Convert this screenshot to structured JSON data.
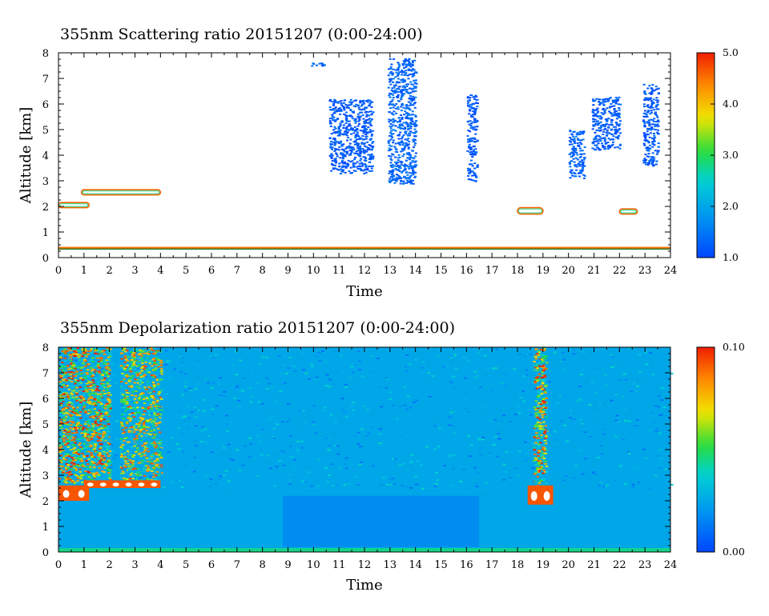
{
  "chart_data": [
    {
      "type": "heatmap",
      "title": "355nm Scattering ratio  20151207 (0:00-24:00)",
      "xlabel": "Time",
      "ylabel": "Altitude [km]",
      "xlim": [
        0,
        24
      ],
      "ylim": [
        0,
        8
      ],
      "x_ticks": [
        "0",
        "1",
        "2",
        "3",
        "4",
        "5",
        "6",
        "7",
        "8",
        "9",
        "10",
        "11",
        "12",
        "13",
        "14",
        "15",
        "16",
        "17",
        "18",
        "19",
        "20",
        "21",
        "22",
        "23",
        "24"
      ],
      "y_ticks": [
        "0",
        "1",
        "2",
        "3",
        "4",
        "5",
        "6",
        "7",
        "8"
      ],
      "colorbar": {
        "min": 1.0,
        "max": 5.0,
        "tick_labels": [
          "1.0",
          "2.0",
          "3.0",
          "4.0",
          "5.0"
        ]
      },
      "background_color": "#ffffff",
      "features": [
        {
          "kind": "cloud-outline",
          "x": [
            0.0,
            1.2
          ],
          "y": [
            1.95,
            2.15
          ],
          "value": 2.5
        },
        {
          "kind": "cloud-outline",
          "x": [
            0.9,
            4.0
          ],
          "y": [
            2.45,
            2.65
          ],
          "value": 2.5
        },
        {
          "kind": "surface-layer",
          "x": [
            0,
            24
          ],
          "y": [
            0.35,
            0.42
          ],
          "value": 4.5
        },
        {
          "kind": "cloud",
          "x": [
            9.8,
            10.4
          ],
          "y": [
            7.5,
            7.65
          ],
          "value": 1.3
        },
        {
          "kind": "cloud",
          "x": [
            10.6,
            12.3
          ],
          "y": [
            3.3,
            6.2
          ],
          "value": 1.2
        },
        {
          "kind": "cloud",
          "x": [
            12.9,
            14.0
          ],
          "y": [
            2.9,
            7.8
          ],
          "value": 1.3
        },
        {
          "kind": "cloud",
          "x": [
            16.0,
            16.4
          ],
          "y": [
            3.0,
            6.4
          ],
          "value": 1.2
        },
        {
          "kind": "cloud-outline",
          "x": [
            18.0,
            19.0
          ],
          "y": [
            1.7,
            1.95
          ],
          "value": 2.5
        },
        {
          "kind": "cloud",
          "x": [
            20.0,
            20.6
          ],
          "y": [
            3.1,
            5.0
          ],
          "value": 1.3
        },
        {
          "kind": "cloud",
          "x": [
            20.9,
            22.0
          ],
          "y": [
            4.2,
            6.3
          ],
          "value": 1.2
        },
        {
          "kind": "cloud",
          "x": [
            22.9,
            23.5
          ],
          "y": [
            3.6,
            6.8
          ],
          "value": 1.2
        },
        {
          "kind": "cloud-outline",
          "x": [
            22.0,
            22.7
          ],
          "y": [
            1.7,
            1.9
          ],
          "value": 2.5
        }
      ]
    },
    {
      "type": "heatmap",
      "title": "355nm Depolarization ratio  20151207 (0:00-24:00)",
      "xlabel": "Time",
      "ylabel": "Altitude [km]",
      "xlim": [
        0,
        24
      ],
      "ylim": [
        0,
        8
      ],
      "x_ticks": [
        "0",
        "1",
        "2",
        "3",
        "4",
        "5",
        "6",
        "7",
        "8",
        "9",
        "10",
        "11",
        "12",
        "13",
        "14",
        "15",
        "16",
        "17",
        "18",
        "19",
        "20",
        "21",
        "22",
        "23",
        "24"
      ],
      "y_ticks": [
        "0",
        "1",
        "2",
        "3",
        "4",
        "5",
        "6",
        "7",
        "8"
      ],
      "colorbar": {
        "min": 0.0,
        "max": 0.1,
        "tick_labels": [
          "0.00",
          "0.10"
        ]
      },
      "background_value": 0.025,
      "features": [
        {
          "kind": "noisy-column",
          "x": [
            0.0,
            1.1
          ],
          "y": [
            2.7,
            8.0
          ],
          "value": 0.05
        },
        {
          "kind": "noisy-column",
          "x": [
            1.1,
            2.0
          ],
          "y": [
            2.8,
            8.0
          ],
          "value": 0.05
        },
        {
          "kind": "noisy-column",
          "x": [
            2.4,
            4.0
          ],
          "y": [
            2.8,
            8.0
          ],
          "value": 0.04
        },
        {
          "kind": "cloud-base",
          "x": [
            0.0,
            1.2
          ],
          "y": [
            2.0,
            2.6
          ],
          "value": 0.1
        },
        {
          "kind": "cloud-base",
          "x": [
            1.0,
            4.0
          ],
          "y": [
            2.5,
            2.8
          ],
          "value": 0.1
        },
        {
          "kind": "noisy-column",
          "x": [
            18.6,
            19.1
          ],
          "y": [
            2.2,
            8.0
          ],
          "value": 0.05
        },
        {
          "kind": "cloud-base",
          "x": [
            18.4,
            19.4
          ],
          "y": [
            1.85,
            2.6
          ],
          "value": 0.1
        },
        {
          "kind": "low-depol-region",
          "x": [
            8.8,
            16.5
          ],
          "y": [
            0.2,
            2.2
          ],
          "value": 0.012
        },
        {
          "kind": "surface-layer",
          "x": [
            0,
            24
          ],
          "y": [
            0.0,
            0.15
          ],
          "value": 0.045
        }
      ]
    }
  ]
}
